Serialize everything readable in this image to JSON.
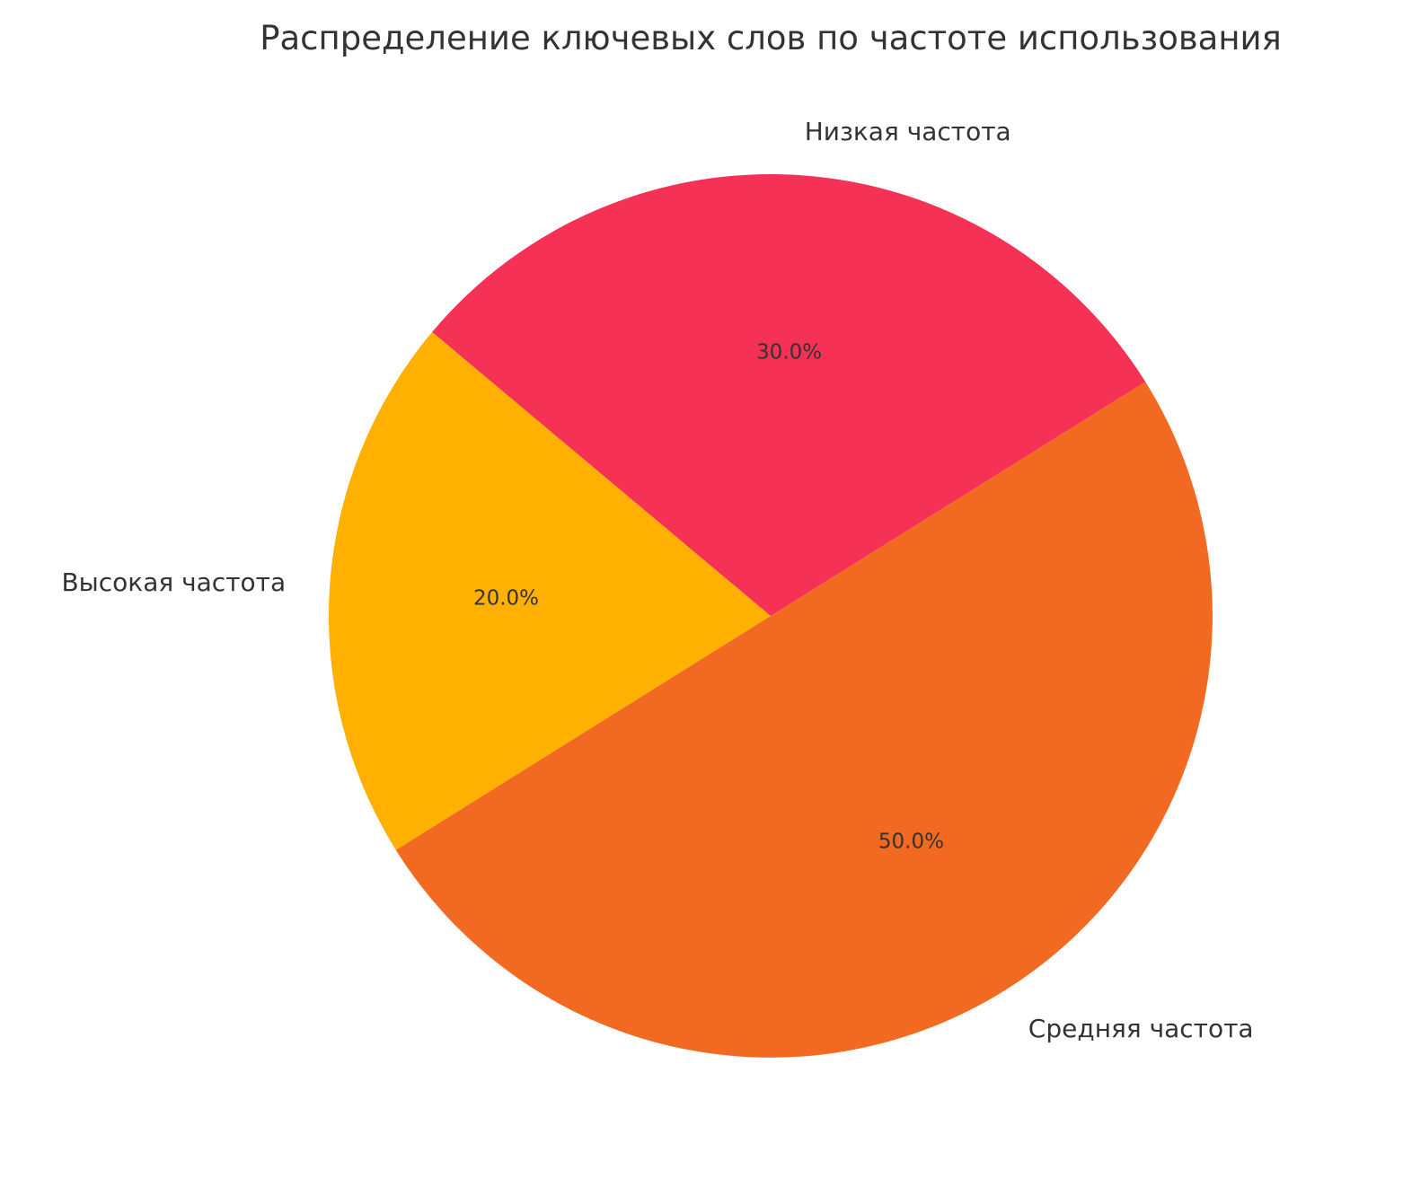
{
  "chart_data": {
    "type": "pie",
    "title": "Распределение ключевых слов по частоте использования",
    "categories": [
      "Высокая частота",
      "Средняя частота",
      "Низкая частота"
    ],
    "values": [
      20,
      50,
      30
    ],
    "pct_labels": [
      "20.0%",
      "50.0%",
      "30.0%"
    ],
    "colors": [
      "#FFB000",
      "#F26A21",
      "#F53255"
    ],
    "start_angle_deg": 140,
    "direction": "counterclockwise"
  }
}
